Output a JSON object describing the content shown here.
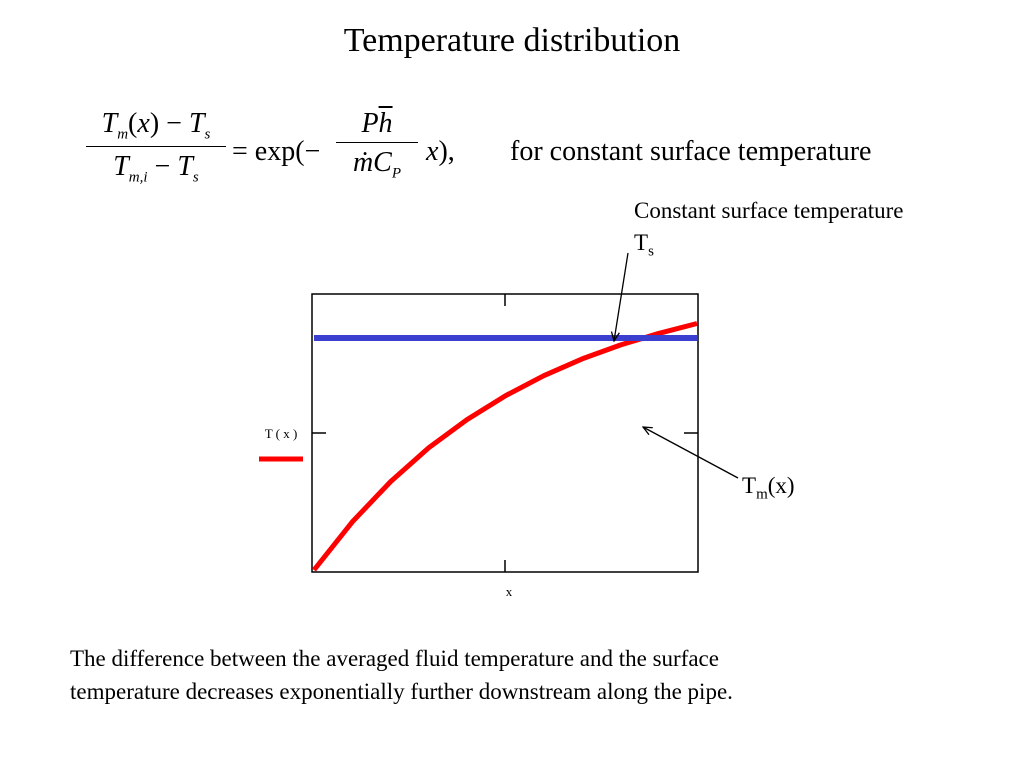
{
  "title": "Temperature distribution",
  "equation": {
    "lhs_num": "T_m(x) − T_s",
    "lhs_den": "T_m,i − T_s",
    "rhs_prefix": "= exp(−",
    "rhs_num": "Ph̄",
    "rhs_den": "ṁC_P",
    "rhs_suffix": "x),",
    "condition": "for constant surface temperature"
  },
  "annotations": {
    "surface_label": "Constant surface temperature",
    "surface_symbol": "T",
    "surface_symbol_sub": "s",
    "mean_symbol": "T",
    "mean_symbol_sub": "m",
    "mean_symbol_suffix": "(x)"
  },
  "caption_line1": "The difference between the averaged fluid temperature and the surface",
  "caption_line2": "temperature decreases exponentially further downstream along the pipe.",
  "chart_data": {
    "type": "line",
    "xlabel": "x",
    "ylabel": "T ( x )",
    "ylim": [
      0,
      1
    ],
    "xlim": [
      0,
      1
    ],
    "grid": false,
    "legend": "left",
    "series": [
      {
        "name": "T ( x )",
        "color": "#ff0000",
        "x": [
          0,
          0.1,
          0.2,
          0.3,
          0.4,
          0.5,
          0.6,
          0.7,
          0.8,
          0.9,
          1.0
        ],
        "y": [
          0.0,
          0.166,
          0.305,
          0.422,
          0.519,
          0.601,
          0.67,
          0.728,
          0.776,
          0.816,
          0.85
        ]
      },
      {
        "name": "",
        "color": "#3a3fd0",
        "x": [
          0,
          1.0
        ],
        "y": [
          0.8,
          0.8
        ]
      }
    ]
  }
}
